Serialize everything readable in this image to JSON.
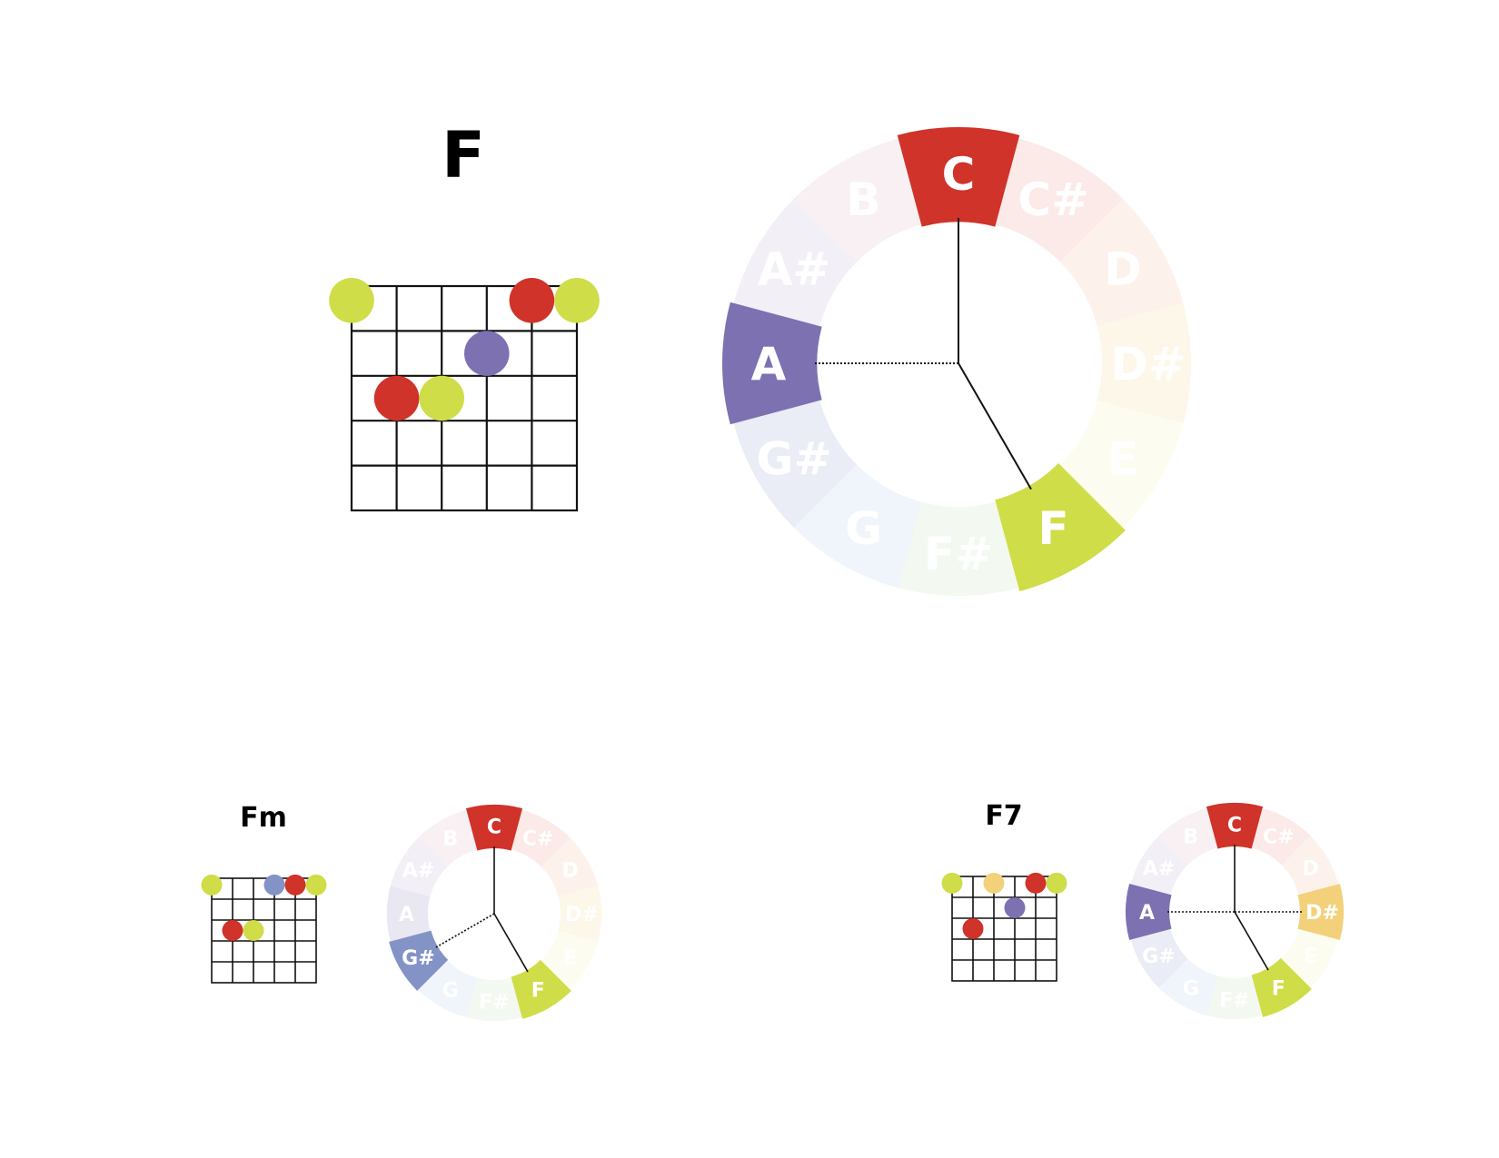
{
  "colors": {
    "C": "#cf3329",
    "C#": "#e6806e",
    "D": "#f0b489",
    "D#": "#f2d17a",
    "E": "#eef2a8",
    "F": "#cfdd48",
    "F#": "#b9d9a8",
    "G": "#a9bde6",
    "G#": "#8393c6",
    "A": "#7d71b2",
    "A#": "#b3a0cf",
    "B": "#d7a4b8"
  },
  "note_order": [
    "C",
    "C#",
    "D",
    "D#",
    "E",
    "F",
    "F#",
    "G",
    "G#",
    "A",
    "A#",
    "B"
  ],
  "chords": [
    {
      "name": "F",
      "highlighted": [
        "C",
        "F",
        "A"
      ],
      "solid_lines": [
        "C",
        "F"
      ],
      "dotted_lines": [
        "A"
      ],
      "fret_dots": [
        {
          "string": 1,
          "fret": 0,
          "note": "F"
        },
        {
          "string": 5,
          "fret": 0,
          "note": "C"
        },
        {
          "string": 6,
          "fret": 0,
          "note": "F"
        },
        {
          "string": 4,
          "fret": 1,
          "note": "A"
        },
        {
          "string": 2,
          "fret": 2,
          "note": "C"
        },
        {
          "string": 3,
          "fret": 2,
          "note": "F"
        }
      ]
    },
    {
      "name": "Fm",
      "highlighted": [
        "C",
        "F",
        "G#"
      ],
      "solid_lines": [
        "C",
        "F"
      ],
      "dotted_lines": [
        "G#"
      ],
      "fret_dots": [
        {
          "string": 1,
          "fret": 0,
          "note": "F"
        },
        {
          "string": 4,
          "fret": 0,
          "note": "G#"
        },
        {
          "string": 5,
          "fret": 0,
          "note": "C"
        },
        {
          "string": 6,
          "fret": 0,
          "note": "F"
        },
        {
          "string": 2,
          "fret": 2,
          "note": "C"
        },
        {
          "string": 3,
          "fret": 2,
          "note": "F"
        }
      ]
    },
    {
      "name": "F7",
      "highlighted": [
        "C",
        "D#",
        "F",
        "A"
      ],
      "solid_lines": [
        "C",
        "F"
      ],
      "dotted_lines": [
        "A",
        "D#"
      ],
      "fret_dots": [
        {
          "string": 1,
          "fret": 0,
          "note": "F"
        },
        {
          "string": 3,
          "fret": 0,
          "note": "D#"
        },
        {
          "string": 5,
          "fret": 0,
          "note": "C"
        },
        {
          "string": 6,
          "fret": 0,
          "note": "F"
        },
        {
          "string": 4,
          "fret": 1,
          "note": "A"
        },
        {
          "string": 2,
          "fret": 2,
          "note": "C"
        }
      ]
    }
  ]
}
